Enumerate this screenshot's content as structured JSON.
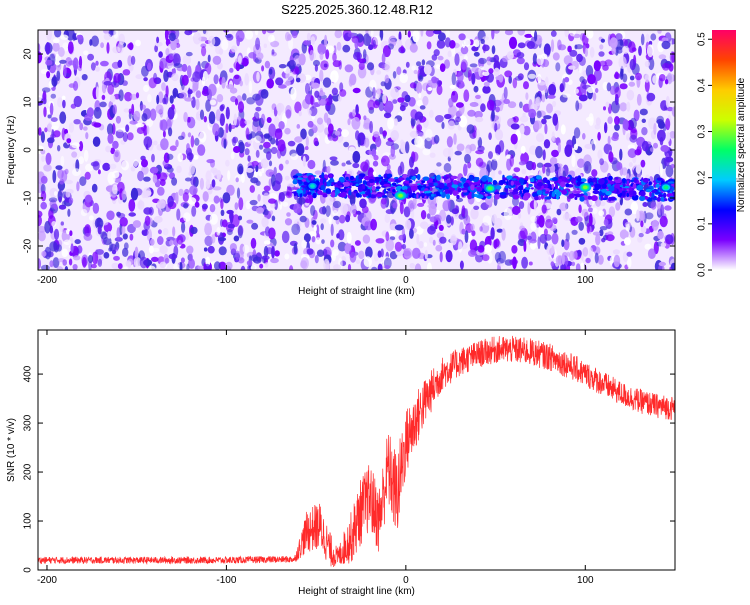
{
  "figure": {
    "title": "S225.2025.360.12.48.R12"
  },
  "chart_data": [
    {
      "type": "heatmap",
      "xlabel": "Height of straight line (km)",
      "ylabel": "Frequency (Hz)",
      "xlim": [
        -205,
        150
      ],
      "ylim": [
        -25,
        25
      ],
      "xticks": [
        -200,
        -100,
        0,
        100
      ],
      "yticks": [
        -20,
        -10,
        0,
        10,
        20
      ],
      "colorbar": {
        "label": "Normalized spectral amplitude",
        "range": [
          0,
          0.52
        ],
        "ticks": [
          0.0,
          0.1,
          0.2,
          0.3,
          0.4,
          0.5
        ],
        "colormap": [
          "#ffffff",
          "#7a00ff",
          "#0000ff",
          "#00ccff",
          "#00ff66",
          "#ccff00",
          "#ffcc00",
          "#ff4400",
          "#ff0066"
        ]
      },
      "background_noise_colors": [
        "#ffffff",
        "#ead8ff",
        "#c69cff",
        "#9955ff",
        "#7a00ff",
        "#5a1cf0",
        "#3c28d8"
      ],
      "signal_band": {
        "x_start": -62,
        "x_end": 150,
        "frequency_start": -7.3,
        "frequency_end": -8.2,
        "halfwidth_hz": 2.2,
        "hotspots": [
          {
            "x": -52,
            "f": -7.5,
            "amp": 0.22
          },
          {
            "x": -3,
            "f": -9.5,
            "amp": 0.3
          },
          {
            "x": 47,
            "f": -8.0,
            "amp": 0.28
          },
          {
            "x": 100,
            "f": -7.8,
            "amp": 0.3
          },
          {
            "x": 145,
            "f": -7.8,
            "amp": 0.25
          }
        ]
      },
      "grid": false
    },
    {
      "type": "line",
      "xlabel": "Height of straight line (km)",
      "ylabel": "SNR (10 * v/v)",
      "xlim": [
        -205,
        150
      ],
      "ylim": [
        0,
        490
      ],
      "xticks": [
        -200,
        -100,
        0,
        100
      ],
      "yticks": [
        0,
        100,
        200,
        300,
        400
      ],
      "color": "#ff2a2a",
      "grid": false,
      "envelope": {
        "x": [
          -205,
          -150,
          -100,
          -62,
          -55,
          -48,
          -42,
          -38,
          -30,
          -25,
          -20,
          -15,
          -10,
          -5,
          0,
          5,
          10,
          20,
          30,
          40,
          50,
          60,
          70,
          80,
          90,
          100,
          110,
          120,
          130,
          140,
          150
        ],
        "y": [
          20,
          20,
          20,
          22,
          80,
          90,
          40,
          25,
          70,
          120,
          150,
          100,
          210,
          150,
          260,
          300,
          340,
          400,
          425,
          440,
          450,
          450,
          445,
          435,
          420,
          400,
          380,
          360,
          345,
          335,
          330
        ],
        "noise": [
          7,
          7,
          7,
          7,
          45,
          50,
          35,
          20,
          55,
          70,
          70,
          70,
          80,
          90,
          70,
          60,
          50,
          35,
          30,
          28,
          28,
          28,
          28,
          28,
          28,
          26,
          26,
          25,
          25,
          25,
          25
        ]
      }
    }
  ]
}
